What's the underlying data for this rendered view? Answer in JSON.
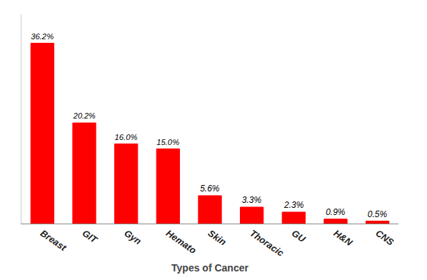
{
  "chart_data": {
    "type": "bar",
    "categories": [
      "Breast",
      "GIT",
      "Gyn",
      "Hemato",
      "Skin",
      "Thoracic",
      "GU",
      "H&N",
      "CNS"
    ],
    "values": [
      36.2,
      20.2,
      16.0,
      15.0,
      5.6,
      3.3,
      2.3,
      0.9,
      0.5
    ],
    "value_labels": [
      "36.2%",
      "20.2%",
      "16.0%",
      "15.0%",
      "5.6%",
      "3.3%",
      "2.3%",
      "0.9%",
      "0.5%"
    ],
    "data_labels": true,
    "color": "#FF0000",
    "xlabel": "Types of Cancer",
    "ylim": [
      0,
      42
    ],
    "grid": false,
    "tick_labels": "x"
  }
}
